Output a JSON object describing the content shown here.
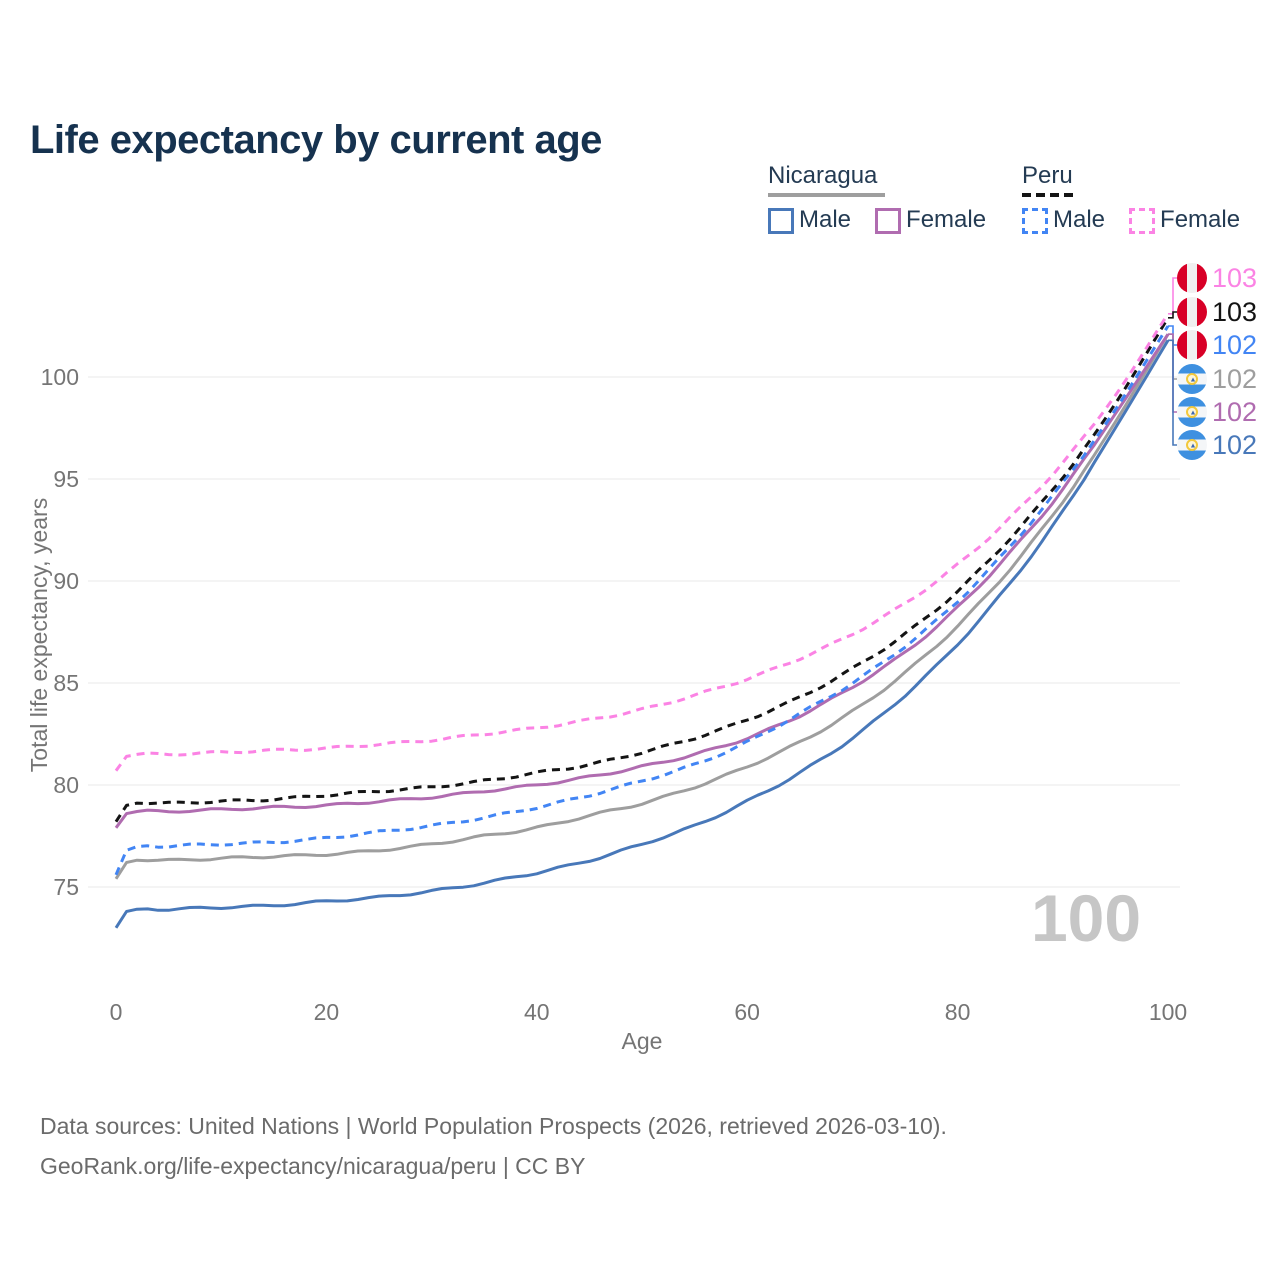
{
  "title": "Life expectancy by current age",
  "legend": {
    "nicaragua": {
      "label": "Nicaragua",
      "male": "Male",
      "female": "Female"
    },
    "peru": {
      "label": "Peru",
      "male": "Male",
      "female": "Female"
    }
  },
  "footer": {
    "line1": "Data sources: United Nations | World Population Prospects (2026, retrieved 2026-03-10).",
    "line2": "GeoRank.org/life-expectancy/nicaragua/peru | CC BY"
  },
  "chart_data": {
    "type": "line",
    "title": "Life expectancy by current age",
    "xlabel": "Age",
    "ylabel": "Total life expectancy, years",
    "x_ticks": [
      0,
      20,
      40,
      60,
      80,
      100
    ],
    "y_ticks": [
      75,
      80,
      85,
      90,
      95,
      100
    ],
    "xlim": [
      0,
      100
    ],
    "ylim": [
      72.5,
      104
    ],
    "grid": "horizontal-only",
    "grid_color": "#e8e8e8",
    "axis_text_color": "#757575",
    "watermark": "100",
    "watermark_color": "#c6c6c6",
    "anchor_ages": [
      0,
      1,
      5,
      10,
      15,
      20,
      25,
      30,
      35,
      40,
      45,
      50,
      55,
      60,
      65,
      70,
      75,
      80,
      85,
      90,
      95,
      100
    ],
    "series": [
      {
        "id": "nicaragua-male",
        "country": "Nicaragua",
        "sex": "Male",
        "style": "solid",
        "color": "#4878b9",
        "end_label": "102",
        "values": [
          73.0,
          73.8,
          73.9,
          74.0,
          74.1,
          74.3,
          74.5,
          74.8,
          75.2,
          75.7,
          76.3,
          77.1,
          78.0,
          79.2,
          80.6,
          82.3,
          84.4,
          86.9,
          89.9,
          93.4,
          97.5,
          101.8
        ]
      },
      {
        "id": "nicaragua-all",
        "country": "Nicaragua",
        "sex": "Both",
        "style": "solid",
        "color": "#9e9e9e",
        "end_label": "102",
        "values": [
          75.4,
          76.2,
          76.3,
          76.4,
          76.5,
          76.6,
          76.8,
          77.1,
          77.5,
          77.9,
          78.5,
          79.1,
          79.9,
          80.9,
          82.1,
          83.6,
          85.5,
          87.8,
          90.6,
          93.9,
          97.8,
          102.1
        ]
      },
      {
        "id": "nicaragua-female",
        "country": "Nicaragua",
        "sex": "Female",
        "style": "solid",
        "color": "#b06cb0",
        "end_label": "102",
        "values": [
          77.9,
          78.6,
          78.7,
          78.8,
          78.9,
          79.0,
          79.2,
          79.4,
          79.7,
          80.0,
          80.4,
          80.9,
          81.5,
          82.3,
          83.4,
          84.8,
          86.5,
          88.7,
          91.4,
          94.5,
          98.2,
          102.1
        ]
      },
      {
        "id": "peru-male",
        "country": "Peru",
        "sex": "Male",
        "style": "dashed",
        "color": "#4285f4",
        "end_label": "102",
        "values": [
          75.6,
          76.8,
          77.0,
          77.1,
          77.2,
          77.4,
          77.7,
          78.0,
          78.4,
          78.9,
          79.5,
          80.2,
          81.0,
          82.1,
          83.5,
          85.0,
          86.8,
          89.0,
          91.7,
          94.8,
          98.4,
          102.5
        ]
      },
      {
        "id": "peru-all",
        "country": "Peru",
        "sex": "Both",
        "style": "dashed",
        "color": "#141414",
        "end_label": "103",
        "values": [
          78.2,
          79.0,
          79.1,
          79.2,
          79.3,
          79.5,
          79.7,
          79.9,
          80.2,
          80.6,
          81.0,
          81.6,
          82.3,
          83.2,
          84.3,
          85.7,
          87.4,
          89.5,
          92.1,
          95.1,
          98.7,
          102.9
        ]
      },
      {
        "id": "peru-female",
        "country": "Peru",
        "sex": "Female",
        "style": "dashed",
        "color": "#fb83e4",
        "end_label": "103",
        "values": [
          80.7,
          81.4,
          81.5,
          81.6,
          81.7,
          81.8,
          82.0,
          82.2,
          82.5,
          82.8,
          83.2,
          83.7,
          84.4,
          85.2,
          86.2,
          87.4,
          88.9,
          90.8,
          93.1,
          95.8,
          99.1,
          103.1
        ]
      }
    ],
    "end_label_rows": [
      "peru-female",
      "peru-all",
      "peru-male",
      "nicaragua-all",
      "nicaragua-female",
      "nicaragua-male"
    ],
    "flag_colors": {
      "peru": [
        "#d80027",
        "#f0f0f0"
      ],
      "nicaragua": [
        "#3e90e0",
        "#f4f6f8"
      ]
    }
  }
}
